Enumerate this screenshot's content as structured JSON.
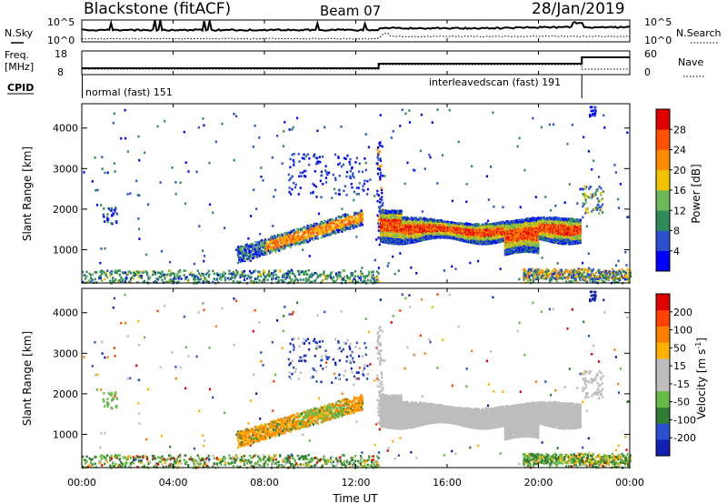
{
  "header": {
    "title": "Blackstone (fitACF)",
    "beam": "Beam 07",
    "date": "28/Jan/2019"
  },
  "top_panels": {
    "nsky_label": "N.Sky",
    "nsearch_label": "N.Search",
    "freq_label_1": "Freq.",
    "freq_label_2": "[MHz]",
    "nave_label": "Nave",
    "cpid_label": "CPID",
    "noise_ticks": [
      "10^5",
      "10^0"
    ],
    "freq_ticks": [
      "18",
      "8"
    ],
    "nave_ticks": [
      "60",
      "0"
    ],
    "cpid_segments": [
      {
        "label": "normal (fast) 151",
        "start_hour": 0.0,
        "end_hour": 13.0
      },
      {
        "label": "interleavedscan (fast) 191",
        "start_hour": 13.0,
        "end_hour": 21.9
      }
    ]
  },
  "colors": {
    "power": [
      "#0000ff",
      "#2a4fcf",
      "#2f8a5a",
      "#6db85a",
      "#f2c200",
      "#ff8c00",
      "#ff5000",
      "#e00000"
    ],
    "velocity": [
      "#1020b0",
      "#2a4fcf",
      "#2e7d32",
      "#66bb44",
      "#bdbdbd",
      "#bdbdbd",
      "#ffb000",
      "#ff8000",
      "#ff4000",
      "#e00000"
    ],
    "ground_scatter": "#bdbdbd"
  },
  "chart_data": [
    {
      "type": "heatmap",
      "name": "power",
      "xlabel": "",
      "ylabel": "Slant Range [km]",
      "colorbar_label": "Power [dB]",
      "colorbar_ticks": [
        "28",
        "24",
        "20",
        "16",
        "12",
        "8",
        "4"
      ],
      "x_range_hours": [
        0,
        24
      ],
      "ylim": [
        180,
        4600
      ],
      "yticks": [
        "1000",
        "2000",
        "3000",
        "4000"
      ]
    },
    {
      "type": "heatmap",
      "name": "velocity",
      "xlabel": "Time UT",
      "ylabel": "Slant Range [km]",
      "colorbar_label": "Velocity [m s^-1]",
      "colorbar_ticks": [
        "200",
        "100",
        "50",
        "15",
        "-15",
        "-50",
        "-100",
        "-200"
      ],
      "x_range_hours": [
        0,
        24
      ],
      "ylim": [
        180,
        4600
      ],
      "yticks": [
        "1000",
        "2000",
        "3000",
        "4000"
      ],
      "xticks": [
        "00:00",
        "04:00",
        "08:00",
        "12:00",
        "16:00",
        "20:00",
        "00:00"
      ]
    }
  ]
}
